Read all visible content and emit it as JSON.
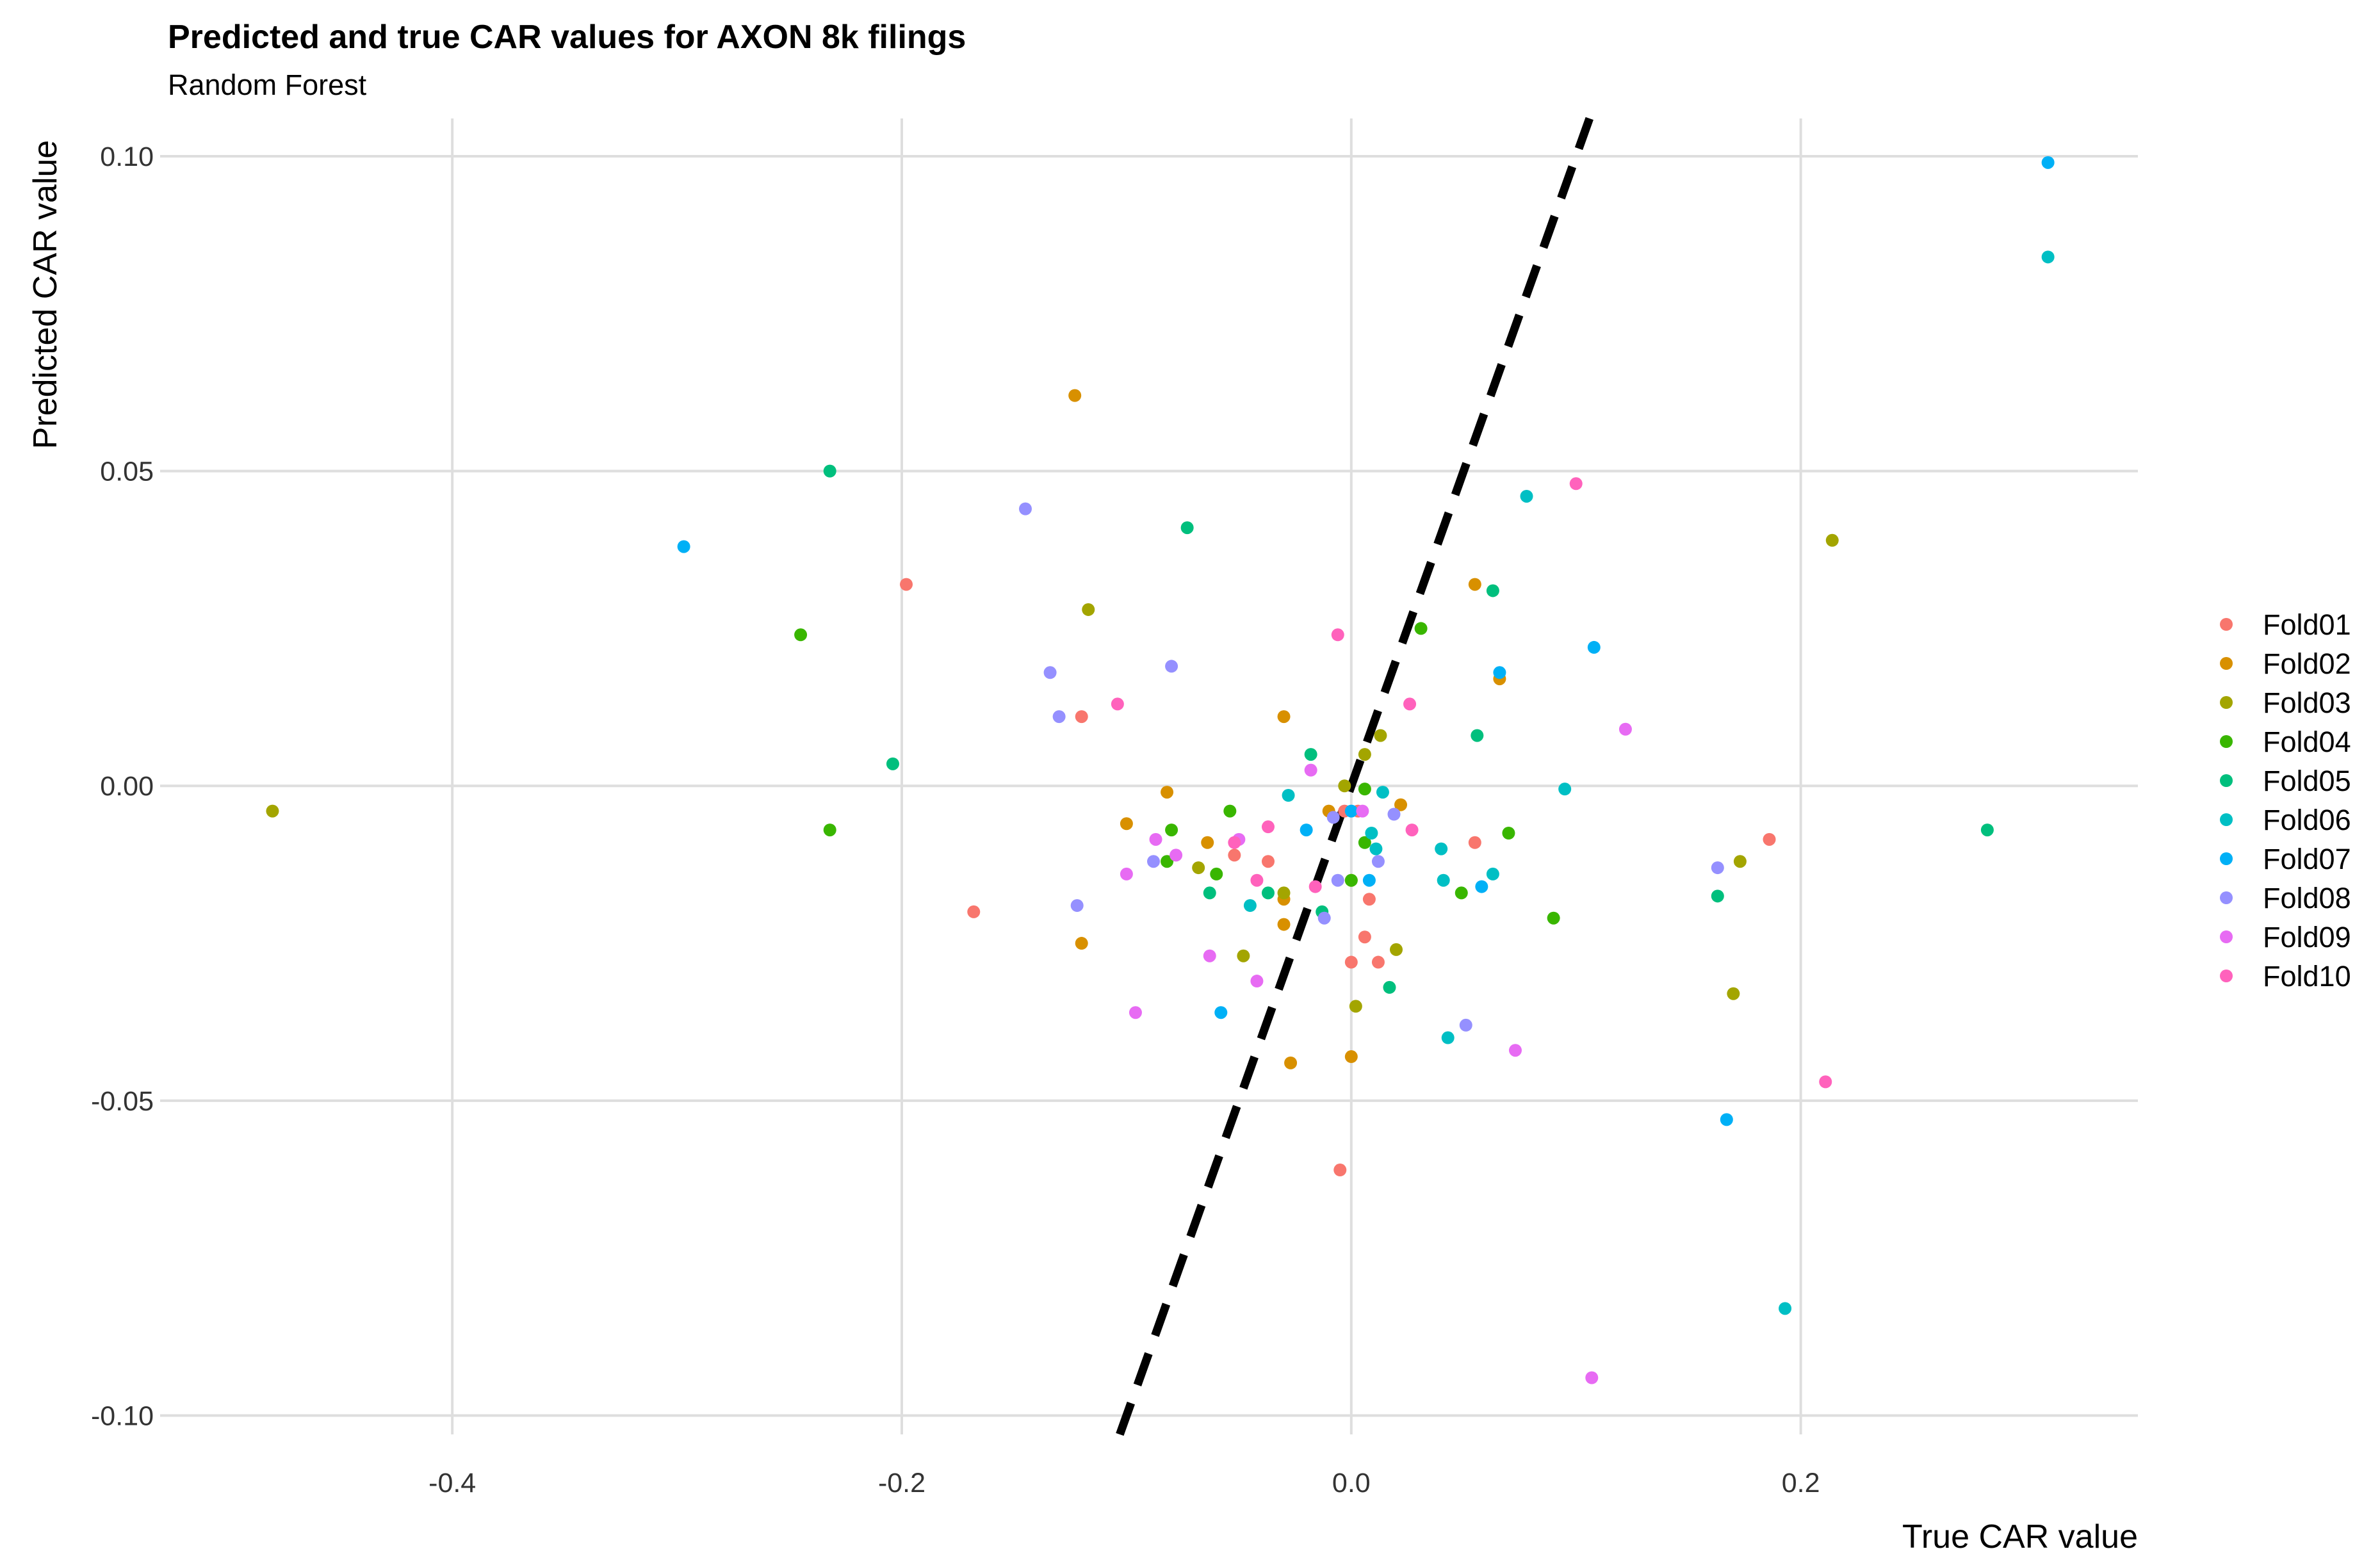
{
  "chart_data": {
    "type": "scatter",
    "title": "Predicted and true CAR values for AXON 8k filings",
    "subtitle": "Random Forest",
    "xlabel": "True CAR value",
    "ylabel": "Predicted CAR value",
    "xlim": [
      -0.53,
      0.35
    ],
    "ylim": [
      -0.103,
      0.106
    ],
    "x_ticks": [
      -0.4,
      -0.2,
      0.0,
      0.2
    ],
    "x_tick_labels": [
      "-0.4",
      "-0.2",
      "0.0",
      "0.2"
    ],
    "y_ticks": [
      -0.1,
      -0.05,
      0.0,
      0.05,
      0.1
    ],
    "y_tick_labels": [
      "-0.10",
      "-0.05",
      "0.00",
      "0.05",
      "0.10"
    ],
    "grid": true,
    "legend_position": "right",
    "reference_line": {
      "style": "dashed",
      "color": "#000000",
      "slope": 1,
      "intercept": 0
    },
    "series": [
      {
        "name": "Fold01",
        "color": "#F8766D",
        "points": [
          [
            -0.198,
            0.032
          ],
          [
            -0.12,
            0.011
          ],
          [
            -0.168,
            -0.02
          ],
          [
            -0.052,
            -0.011
          ],
          [
            -0.037,
            -0.012
          ],
          [
            0.0,
            -0.028
          ],
          [
            0.006,
            -0.024
          ],
          [
            0.008,
            -0.018
          ],
          [
            0.012,
            -0.028
          ],
          [
            -0.005,
            -0.061
          ],
          [
            0.055,
            -0.009
          ],
          [
            0.186,
            -0.0085
          ],
          [
            -0.003,
            -0.004
          ],
          [
            0.003,
            -0.004
          ]
        ]
      },
      {
        "name": "Fold02",
        "color": "#D89000",
        "points": [
          [
            -0.123,
            0.062
          ],
          [
            -0.03,
            0.011
          ],
          [
            -0.082,
            -0.001
          ],
          [
            -0.1,
            -0.006
          ],
          [
            -0.064,
            -0.009
          ],
          [
            -0.03,
            -0.018
          ],
          [
            -0.03,
            -0.022
          ],
          [
            -0.12,
            -0.025
          ],
          [
            -0.027,
            -0.044
          ],
          [
            0.0,
            -0.043
          ],
          [
            0.055,
            0.032
          ],
          [
            0.066,
            0.017
          ],
          [
            0.022,
            -0.003
          ],
          [
            -0.01,
            -0.004
          ]
        ]
      },
      {
        "name": "Fold03",
        "color": "#A3A500",
        "points": [
          [
            -0.48,
            -0.004
          ],
          [
            -0.117,
            0.028
          ],
          [
            0.214,
            0.039
          ],
          [
            0.013,
            0.008
          ],
          [
            0.006,
            0.005
          ],
          [
            -0.003,
            0.0
          ],
          [
            0.0,
            -0.015
          ],
          [
            -0.048,
            -0.027
          ],
          [
            -0.068,
            -0.013
          ],
          [
            0.02,
            -0.026
          ],
          [
            0.002,
            -0.035
          ],
          [
            0.17,
            -0.033
          ],
          [
            0.173,
            -0.012
          ],
          [
            -0.03,
            -0.017
          ]
        ]
      },
      {
        "name": "Fold04",
        "color": "#39B600",
        "points": [
          [
            -0.245,
            0.024
          ],
          [
            -0.232,
            -0.007
          ],
          [
            -0.08,
            -0.007
          ],
          [
            -0.054,
            -0.004
          ],
          [
            -0.06,
            -0.014
          ],
          [
            -0.082,
            -0.012
          ],
          [
            0.031,
            0.025
          ],
          [
            0.0,
            -0.015
          ],
          [
            0.006,
            -0.0005
          ],
          [
            0.049,
            -0.017
          ],
          [
            0.09,
            -0.021
          ],
          [
            0.07,
            -0.0075
          ],
          [
            0.006,
            -0.009
          ]
        ]
      },
      {
        "name": "Fold05",
        "color": "#00BF7D",
        "points": [
          [
            -0.232,
            0.05
          ],
          [
            -0.073,
            0.041
          ],
          [
            -0.204,
            0.0035
          ],
          [
            0.063,
            0.031
          ],
          [
            0.056,
            0.008
          ],
          [
            -0.018,
            0.005
          ],
          [
            0.163,
            -0.0175
          ],
          [
            0.017,
            -0.032
          ],
          [
            0.283,
            -0.007
          ],
          [
            -0.063,
            -0.017
          ],
          [
            -0.037,
            -0.017
          ],
          [
            -0.013,
            -0.02
          ]
        ]
      },
      {
        "name": "Fold06",
        "color": "#00BFC4",
        "points": [
          [
            0.31,
            0.084
          ],
          [
            0.078,
            0.046
          ],
          [
            0.095,
            -0.0005
          ],
          [
            0.193,
            -0.083
          ],
          [
            -0.028,
            -0.0015
          ],
          [
            0.014,
            -0.001
          ],
          [
            0.009,
            -0.0075
          ],
          [
            0.04,
            -0.01
          ],
          [
            0.041,
            -0.015
          ],
          [
            0.063,
            -0.014
          ],
          [
            -0.045,
            -0.019
          ],
          [
            0.043,
            -0.04
          ],
          [
            0.011,
            -0.01
          ]
        ]
      },
      {
        "name": "Fold07",
        "color": "#00B0F6",
        "points": [
          [
            0.31,
            0.099
          ],
          [
            -0.297,
            0.038
          ],
          [
            0.108,
            0.022
          ],
          [
            0.066,
            0.018
          ],
          [
            -0.02,
            -0.007
          ],
          [
            0.0,
            -0.004
          ],
          [
            0.008,
            -0.015
          ],
          [
            0.058,
            -0.016
          ],
          [
            -0.058,
            -0.036
          ],
          [
            0.167,
            -0.053
          ]
        ]
      },
      {
        "name": "Fold08",
        "color": "#9590FF",
        "points": [
          [
            -0.145,
            0.044
          ],
          [
            -0.08,
            0.019
          ],
          [
            -0.134,
            0.018
          ],
          [
            -0.13,
            0.011
          ],
          [
            -0.088,
            -0.012
          ],
          [
            -0.122,
            -0.019
          ],
          [
            0.019,
            -0.0045
          ],
          [
            0.012,
            -0.012
          ],
          [
            -0.006,
            -0.015
          ],
          [
            -0.012,
            -0.021
          ],
          [
            0.163,
            -0.013
          ],
          [
            0.051,
            -0.038
          ],
          [
            -0.008,
            -0.005
          ]
        ]
      },
      {
        "name": "Fold09",
        "color": "#E76BF3",
        "points": [
          [
            0.122,
            0.009
          ],
          [
            -0.018,
            0.0025
          ],
          [
            0.005,
            -0.004
          ],
          [
            -0.087,
            -0.0085
          ],
          [
            -0.078,
            -0.011
          ],
          [
            -0.05,
            -0.0085
          ],
          [
            -0.1,
            -0.014
          ],
          [
            -0.063,
            -0.027
          ],
          [
            -0.042,
            -0.031
          ],
          [
            -0.096,
            -0.036
          ],
          [
            0.073,
            -0.042
          ],
          [
            0.107,
            -0.094
          ]
        ]
      },
      {
        "name": "Fold10",
        "color": "#FF62BC",
        "points": [
          [
            0.1,
            0.048
          ],
          [
            -0.006,
            0.024
          ],
          [
            -0.104,
            0.013
          ],
          [
            0.026,
            0.013
          ],
          [
            0.027,
            -0.007
          ],
          [
            -0.037,
            -0.0065
          ],
          [
            -0.052,
            -0.009
          ],
          [
            -0.042,
            -0.015
          ],
          [
            -0.016,
            -0.016
          ],
          [
            0.211,
            -0.047
          ]
        ]
      }
    ]
  }
}
